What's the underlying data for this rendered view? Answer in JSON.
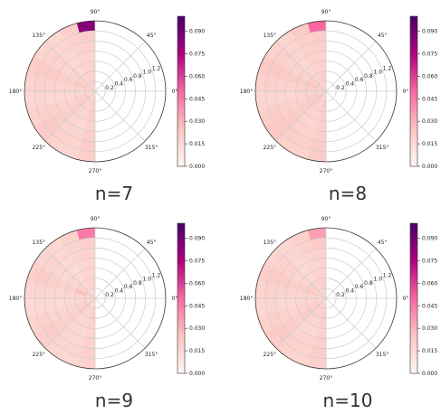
{
  "figure": {
    "panel_titles": [
      "n=7",
      "n=8",
      "n=9",
      "n=10"
    ]
  },
  "colors": {
    "cmap_low": "#fff7f3",
    "cmap_mid": "#f768a1",
    "cmap_high": "#49006a",
    "grid": "#cccccc",
    "frame": "#333333"
  },
  "chart_data": [
    {
      "type": "heatmap",
      "projection": "polar",
      "title": "n=7",
      "theta_tick_labels": [
        "0°",
        "45°",
        "90°",
        "135°",
        "180°",
        "225°",
        "270°",
        "315°"
      ],
      "r_tick_labels": [
        "0.2",
        "0.4",
        "0.6",
        "0.8",
        "1.0",
        "1.2"
      ],
      "rlim": [
        0,
        1.4
      ],
      "theta_range_deg": [
        90,
        270
      ],
      "grid": true,
      "colorbar_ticks": [
        "0.000",
        "0.015",
        "0.030",
        "0.045",
        "0.060",
        "0.075",
        "0.090"
      ],
      "colorbar_range": [
        0,
        0.1
      ],
      "intensity": [
        [
          0.02,
          0.02,
          0.019,
          0.018,
          0.019,
          0.021,
          0.085
        ],
        [
          0.018,
          0.019,
          0.018,
          0.017,
          0.018,
          0.019,
          0.02
        ],
        [
          0.016,
          0.017,
          0.016,
          0.015,
          0.016,
          0.017,
          0.016
        ],
        [
          0.019,
          0.02,
          0.018,
          0.017,
          0.018,
          0.019,
          0.018
        ],
        [
          0.022,
          0.023,
          0.021,
          0.02,
          0.021,
          0.022,
          0.021
        ],
        [
          0.018,
          0.019,
          0.018,
          0.017,
          0.018,
          0.019,
          0.018
        ],
        [
          0.016,
          0.017,
          0.016,
          0.015,
          0.016,
          0.017,
          0.016
        ],
        [
          0.019,
          0.02,
          0.019,
          0.018,
          0.019,
          0.02,
          0.019
        ],
        [
          0.021,
          0.022,
          0.021,
          0.02,
          0.021,
          0.022,
          0.021
        ],
        [
          0.018,
          0.019,
          0.018,
          0.017,
          0.018,
          0.019,
          0.018
        ],
        [
          0.017,
          0.018,
          0.017,
          0.016,
          0.017,
          0.018,
          0.017
        ],
        [
          0.02,
          0.021,
          0.02,
          0.019,
          0.02,
          0.021,
          0.02
        ]
      ]
    },
    {
      "type": "heatmap",
      "projection": "polar",
      "title": "n=8",
      "theta_tick_labels": [
        "0°",
        "45°",
        "90°",
        "135°",
        "180°",
        "225°",
        "270°",
        "315°"
      ],
      "r_tick_labels": [
        "0.2",
        "0.4",
        "0.6",
        "0.8",
        "1.0",
        "1.2"
      ],
      "rlim": [
        0,
        1.4
      ],
      "theta_range_deg": [
        90,
        270
      ],
      "grid": true,
      "colorbar_ticks": [
        "0.000",
        "0.015",
        "0.030",
        "0.045",
        "0.060",
        "0.075",
        "0.090"
      ],
      "colorbar_range": [
        0,
        0.1
      ],
      "intensity": [
        [
          0.021,
          0.021,
          0.02,
          0.019,
          0.02,
          0.021,
          0.05
        ],
        [
          0.019,
          0.02,
          0.019,
          0.018,
          0.019,
          0.02,
          0.022
        ],
        [
          0.017,
          0.018,
          0.017,
          0.016,
          0.017,
          0.018,
          0.017
        ],
        [
          0.02,
          0.021,
          0.019,
          0.018,
          0.019,
          0.02,
          0.019
        ],
        [
          0.023,
          0.024,
          0.022,
          0.021,
          0.022,
          0.023,
          0.022
        ],
        [
          0.019,
          0.02,
          0.019,
          0.018,
          0.019,
          0.02,
          0.019
        ],
        [
          0.017,
          0.018,
          0.017,
          0.016,
          0.017,
          0.018,
          0.017
        ],
        [
          0.02,
          0.021,
          0.02,
          0.019,
          0.02,
          0.021,
          0.02
        ],
        [
          0.022,
          0.023,
          0.022,
          0.021,
          0.022,
          0.023,
          0.022
        ],
        [
          0.019,
          0.02,
          0.019,
          0.018,
          0.019,
          0.02,
          0.019
        ],
        [
          0.018,
          0.019,
          0.018,
          0.017,
          0.018,
          0.019,
          0.018
        ],
        [
          0.021,
          0.022,
          0.021,
          0.02,
          0.021,
          0.022,
          0.021
        ]
      ]
    },
    {
      "type": "heatmap",
      "projection": "polar",
      "title": "n=9",
      "theta_tick_labels": [
        "0°",
        "45°",
        "90°",
        "135°",
        "180°",
        "225°",
        "270°",
        "315°"
      ],
      "r_tick_labels": [
        "0.2",
        "0.4",
        "0.6",
        "0.8",
        "1.0",
        "1.2"
      ],
      "rlim": [
        0,
        1.4
      ],
      "theta_range_deg": [
        90,
        270
      ],
      "grid": true,
      "colorbar_ticks": [
        "0.000",
        "0.015",
        "0.030",
        "0.045",
        "0.060",
        "0.075",
        "0.090"
      ],
      "colorbar_range": [
        0,
        0.1
      ],
      "intensity": [
        [
          0.019,
          0.019,
          0.018,
          0.017,
          0.018,
          0.02,
          0.045
        ],
        [
          0.017,
          0.018,
          0.017,
          0.016,
          0.017,
          0.018,
          0.019
        ],
        [
          0.015,
          0.016,
          0.015,
          0.014,
          0.015,
          0.016,
          0.015
        ],
        [
          0.018,
          0.019,
          0.017,
          0.016,
          0.017,
          0.018,
          0.017
        ],
        [
          0.021,
          0.026,
          0.02,
          0.019,
          0.02,
          0.021,
          0.02
        ],
        [
          0.017,
          0.018,
          0.017,
          0.016,
          0.017,
          0.018,
          0.017
        ],
        [
          0.015,
          0.016,
          0.015,
          0.014,
          0.015,
          0.016,
          0.015
        ],
        [
          0.018,
          0.019,
          0.018,
          0.017,
          0.018,
          0.019,
          0.018
        ],
        [
          0.02,
          0.021,
          0.02,
          0.019,
          0.02,
          0.021,
          0.02
        ],
        [
          0.017,
          0.018,
          0.017,
          0.016,
          0.017,
          0.018,
          0.017
        ],
        [
          0.016,
          0.017,
          0.016,
          0.015,
          0.016,
          0.017,
          0.016
        ],
        [
          0.019,
          0.02,
          0.019,
          0.018,
          0.019,
          0.02,
          0.019
        ]
      ]
    },
    {
      "type": "heatmap",
      "projection": "polar",
      "title": "n=10",
      "theta_tick_labels": [
        "0°",
        "45°",
        "90°",
        "135°",
        "180°",
        "225°",
        "270°",
        "315°"
      ],
      "r_tick_labels": [
        "0.2",
        "0.4",
        "0.6",
        "0.8",
        "1.0",
        "1.2"
      ],
      "rlim": [
        0,
        1.4
      ],
      "theta_range_deg": [
        90,
        270
      ],
      "grid": true,
      "colorbar_ticks": [
        "0.000",
        "0.015",
        "0.030",
        "0.045",
        "0.060",
        "0.075",
        "0.090"
      ],
      "colorbar_range": [
        0,
        0.1
      ],
      "intensity": [
        [
          0.02,
          0.02,
          0.019,
          0.018,
          0.019,
          0.021,
          0.035
        ],
        [
          0.018,
          0.019,
          0.018,
          0.017,
          0.018,
          0.019,
          0.02
        ],
        [
          0.016,
          0.017,
          0.016,
          0.015,
          0.016,
          0.017,
          0.016
        ],
        [
          0.019,
          0.02,
          0.018,
          0.017,
          0.018,
          0.019,
          0.018
        ],
        [
          0.022,
          0.023,
          0.021,
          0.02,
          0.021,
          0.022,
          0.021
        ],
        [
          0.018,
          0.019,
          0.018,
          0.017,
          0.018,
          0.019,
          0.018
        ],
        [
          0.016,
          0.017,
          0.016,
          0.015,
          0.016,
          0.017,
          0.016
        ],
        [
          0.019,
          0.02,
          0.019,
          0.018,
          0.019,
          0.02,
          0.019
        ],
        [
          0.021,
          0.022,
          0.021,
          0.02,
          0.021,
          0.022,
          0.021
        ],
        [
          0.018,
          0.019,
          0.018,
          0.017,
          0.018,
          0.019,
          0.018
        ],
        [
          0.017,
          0.018,
          0.017,
          0.016,
          0.017,
          0.018,
          0.017
        ],
        [
          0.02,
          0.021,
          0.02,
          0.019,
          0.02,
          0.021,
          0.02
        ]
      ]
    }
  ]
}
